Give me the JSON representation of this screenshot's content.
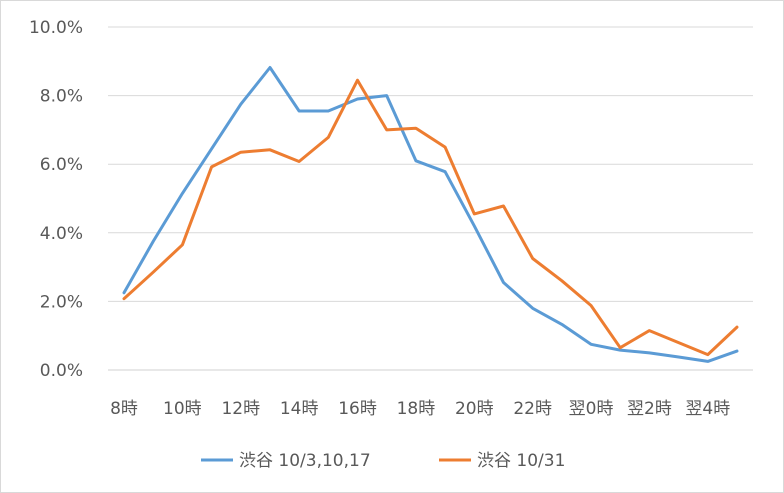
{
  "chart_data": {
    "type": "line",
    "title": "",
    "xlabel": "",
    "ylabel": "",
    "ylim": [
      0,
      10
    ],
    "y_tick_format": "percent_one_decimal",
    "y_ticks": [
      0,
      2,
      4,
      6,
      8,
      10
    ],
    "y_tick_labels": [
      "0.0%",
      "2.0%",
      "4.0%",
      "6.0%",
      "8.0%",
      "10.0%"
    ],
    "x": [
      "8時",
      "9時",
      "10時",
      "11時",
      "12時",
      "13時",
      "14時",
      "15時",
      "16時",
      "17時",
      "18時",
      "19時",
      "20時",
      "21時",
      "22時",
      "23時",
      "翌0時",
      "翌1時",
      "翌2時",
      "翌3時",
      "翌4時",
      "翌5時"
    ],
    "x_tick_labels": [
      "8時",
      "10時",
      "12時",
      "14時",
      "16時",
      "18時",
      "20時",
      "22時",
      "翌0時",
      "翌2時",
      "翌4時"
    ],
    "x_tick_indices": [
      0,
      2,
      4,
      6,
      8,
      10,
      12,
      14,
      16,
      18,
      20
    ],
    "grid": "horizontal",
    "legend_position": "bottom",
    "series": [
      {
        "name": "渋谷 10/3,10,17",
        "color": "#5B9BD5",
        "values": [
          2.25,
          3.75,
          5.15,
          6.45,
          7.75,
          8.82,
          7.55,
          7.55,
          7.9,
          8.0,
          6.1,
          5.78,
          4.2,
          2.55,
          1.8,
          1.33,
          0.75,
          0.58,
          0.5,
          0.38,
          0.25,
          0.55
        ]
      },
      {
        "name": "渋谷 10/31",
        "color": "#ED7D31",
        "values": [
          2.08,
          2.85,
          3.65,
          5.92,
          6.35,
          6.42,
          6.08,
          6.78,
          8.45,
          7.0,
          7.05,
          6.5,
          4.55,
          4.78,
          3.25,
          2.6,
          1.88,
          0.65,
          1.15,
          0.8,
          0.45,
          1.25
        ]
      }
    ]
  }
}
